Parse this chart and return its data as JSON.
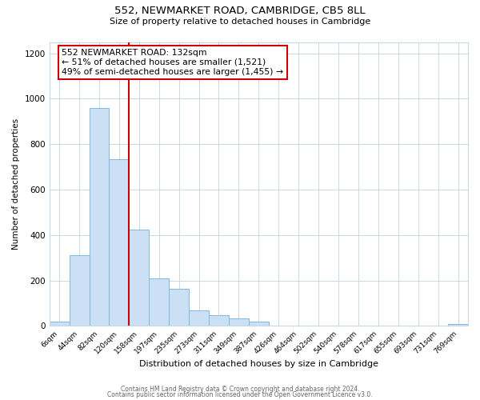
{
  "title": "552, NEWMARKET ROAD, CAMBRIDGE, CB5 8LL",
  "subtitle": "Size of property relative to detached houses in Cambridge",
  "xlabel": "Distribution of detached houses by size in Cambridge",
  "ylabel": "Number of detached properties",
  "bar_labels": [
    "6sqm",
    "44sqm",
    "82sqm",
    "120sqm",
    "158sqm",
    "197sqm",
    "235sqm",
    "273sqm",
    "311sqm",
    "349sqm",
    "387sqm",
    "426sqm",
    "464sqm",
    "502sqm",
    "540sqm",
    "578sqm",
    "617sqm",
    "655sqm",
    "693sqm",
    "731sqm",
    "769sqm"
  ],
  "bar_values": [
    20,
    310,
    960,
    735,
    425,
    210,
    163,
    70,
    47,
    32,
    18,
    0,
    0,
    0,
    0,
    0,
    0,
    0,
    0,
    0,
    10
  ],
  "bar_color": "#cce0f5",
  "bar_edge_color": "#7fb8e0",
  "vline_x": 3.5,
  "vline_color": "#cc0000",
  "annotation_text": "552 NEWMARKET ROAD: 132sqm\n← 51% of detached houses are smaller (1,521)\n49% of semi-detached houses are larger (1,455) →",
  "annotation_box_color": "#cc0000",
  "ylim": [
    0,
    1250
  ],
  "yticks": [
    0,
    200,
    400,
    600,
    800,
    1000,
    1200
  ],
  "footer1": "Contains HM Land Registry data © Crown copyright and database right 2024.",
  "footer2": "Contains public sector information licensed under the Open Government Licence v3.0.",
  "bg_color": "#ffffff",
  "grid_color": "#c8d8e8"
}
